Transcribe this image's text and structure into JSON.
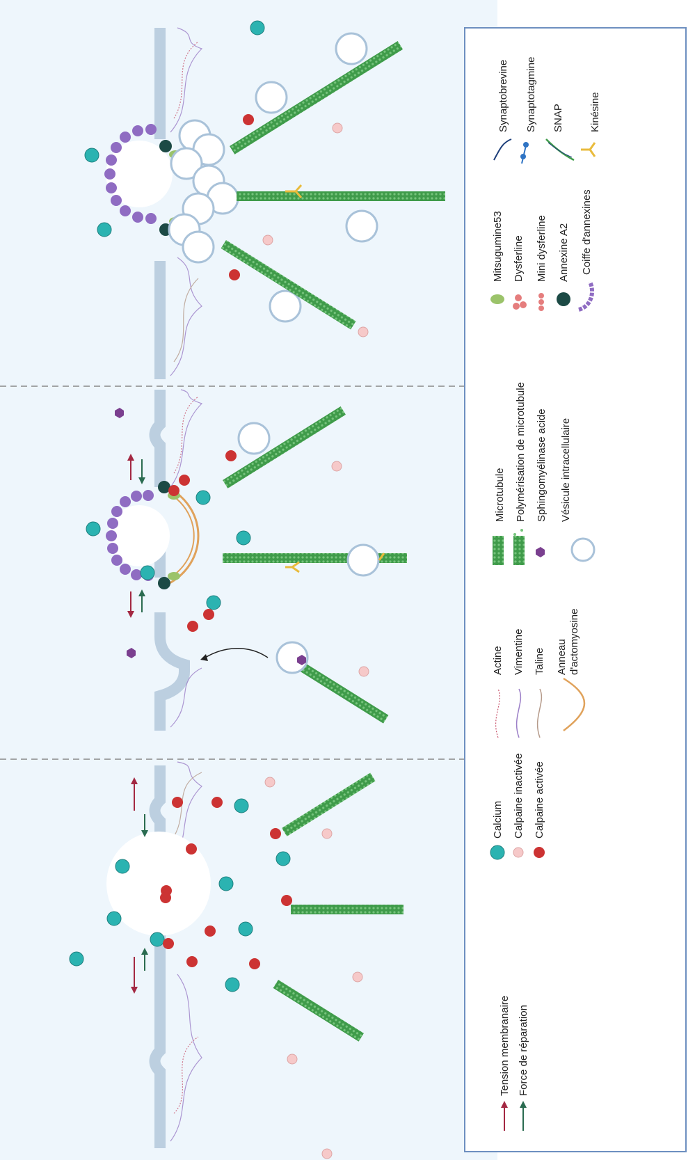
{
  "legend": {
    "column1": {
      "tension": "Tension membranaire",
      "force": "Force de réparation",
      "calcium": "Calcium",
      "calpaine_inactive": "Calpaine inactivée",
      "calpaine_active": "Calpaine activée"
    },
    "column2": {
      "actine": "Actine",
      "vimentine": "Vimentine",
      "taline": "Taline",
      "anneau_line1": "Anneau",
      "anneau_line2": "d'actomyosine"
    },
    "column3": {
      "microtubule": "Microtubule",
      "polymerisation": "Polymérisation de microtubule",
      "sphingomyelinase": "Sphingomyélinase acide",
      "vesicule": "Vésicule intracellulaire"
    },
    "column4": {
      "mitsugumine": "Mitsugumine53",
      "dysferline": "Dysferline",
      "mini_dysferline": "Mini dysferline",
      "annexine_a2": "Annexine A2",
      "coiffe": "Coiffe d'annexines"
    },
    "column5": {
      "synaptobrevine": "Synaptobrevine",
      "synaptotagmine": "Synaptotagmine",
      "snap": "SNAP",
      "kinesine": "Kinésine"
    }
  },
  "colors": {
    "background": "#eef6fc",
    "membrane": "#bccfe0",
    "microtubule": "#3f9b4a",
    "calcium": "#2bb3b1",
    "calpaine_active": "#cc3333",
    "calpaine_inactive": "#f6c9c9",
    "dysferline": "#e57d7d",
    "annexine_a2": "#1c4a45",
    "mitsugumine": "#9bc36a",
    "coiffe": "#8f6cc2",
    "kinesine": "#e9bb3c",
    "synaptotagmine": "#2f74c4",
    "synaptobrevine": "#1d3e7a",
    "actomyosine": "#e0a25b",
    "tension_arrow": "#a32842",
    "force_arrow": "#2a6b50",
    "legend_border": "#6d8fc0"
  },
  "icons": {
    "calcium": "calcium-ion-icon",
    "calpaine_inactive": "calpain-inactive-icon",
    "calpaine_active": "calpain-active-icon",
    "microtubule": "microtubule-icon",
    "vesicule": "vesicle-icon",
    "annexine": "annexin-a2-icon",
    "coiffe": "annexin-cap-icon",
    "kinesine": "kinesin-icon"
  }
}
